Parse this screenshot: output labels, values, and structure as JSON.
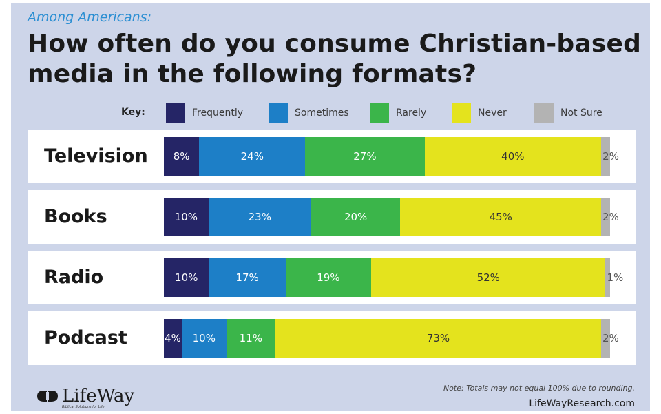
{
  "header": {
    "subtitle": "Among Americans:",
    "title_line1": "How often do you consume Christian-based",
    "title_line2": "media in the following formats?"
  },
  "key": {
    "label": "Key:",
    "items": [
      {
        "name": "Frequently",
        "color": "#252566"
      },
      {
        "name": "Sometimes",
        "color": "#1d7fc7"
      },
      {
        "name": "Rarely",
        "color": "#3bb54a"
      },
      {
        "name": "Never",
        "color": "#e4e31d"
      },
      {
        "name": "Not Sure",
        "color": "#b3b3b3"
      }
    ]
  },
  "chart_data": {
    "type": "bar",
    "orientation": "horizontal",
    "stacked": true,
    "title": "How often do you consume Christian-based media in the following formats?",
    "subtitle": "Among Americans:",
    "categories": [
      "Television",
      "Books",
      "Radio",
      "Podcast"
    ],
    "series": [
      {
        "name": "Frequently",
        "values": [
          8,
          10,
          10,
          4
        ],
        "labels": [
          "8%",
          "10%",
          "10%",
          "4%"
        ]
      },
      {
        "name": "Sometimes",
        "values": [
          24,
          23,
          17,
          10
        ],
        "labels": [
          "24%",
          "23%",
          "17%",
          "10%"
        ]
      },
      {
        "name": "Rarely",
        "values": [
          27,
          20,
          19,
          11
        ],
        "labels": [
          "27%",
          "20%",
          "19%",
          "11%"
        ]
      },
      {
        "name": "Never",
        "values": [
          40,
          45,
          52,
          73
        ],
        "labels": [
          "40%",
          "45%",
          "52%",
          "73%"
        ]
      },
      {
        "name": "Not Sure",
        "values": [
          2,
          2,
          1,
          2
        ],
        "labels": [
          "2%",
          "2%",
          "1%",
          "2%"
        ]
      }
    ],
    "legend": "top"
  },
  "footer": {
    "logo_text": "LifeWay",
    "logo_tagline": "Biblical Solutions for Life",
    "note": "Note: Totals may not equal 100% due to rounding.",
    "site": "LifeWayResearch.com"
  }
}
